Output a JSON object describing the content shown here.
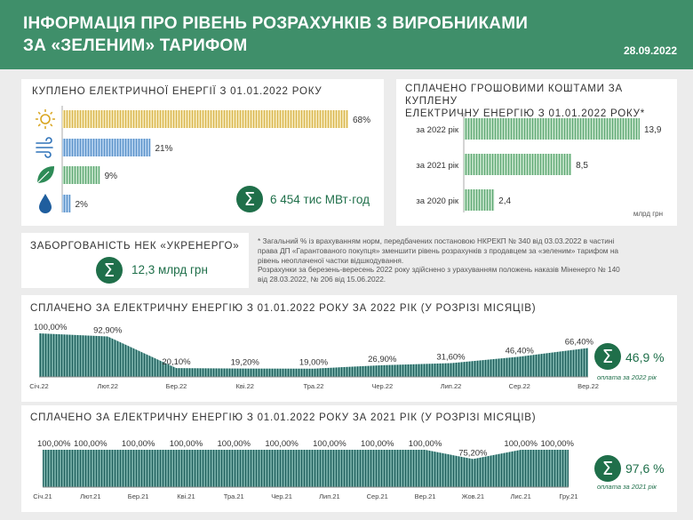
{
  "header": {
    "title_line1": "ІНФОРМАЦІЯ ПРО РІВЕНЬ РОЗРАХУНКІВ З ВИРОБНИКАМИ",
    "title_line2": "ЗА «ЗЕЛЕНИМ» ТАРИФОМ",
    "date": "28.09.2022"
  },
  "purchased": {
    "title": "КУПЛЕНО  ЕЛЕКТРИЧНОЇ  ЕНЕРГІЇ  З 01.01.2022 РОКУ",
    "total": "6 454 тис МВт·год"
  },
  "debt": {
    "title": "ЗАБОРГОВАНІСТЬ  НЕК  «УКРЕНЕРГО»",
    "value": "12,3 млрд грн"
  },
  "paid_money": {
    "title_line1": "СПЛАЧЕНО  ГРОШОВИМИ  КОШТАМИ  ЗА  КУПЛЕНУ",
    "title_line2": "ЕЛЕКТРИЧНУ  ЕНЕРГІЮ  З 01.01.2022 РОКУ*"
  },
  "note": {
    "line1": "* Загальний % із врахуванням норм, передбачених постановою НКРЕКП № 340 від 03.03.2022 в частині",
    "line2": "права ДП «Гарантованого покупця»  зменшити  рівень розрахунків з продавцем за «зеленим»  тарифом на",
    "line3": "рівень неоплаченої  частки відшкодування.",
    "line4": "Розрахунки  за березень-вересень 2022 року здійснено з урахуванням  положень наказів Міненерго № 140",
    "line5": "від 28.03.2022, № 206 від 15.06.2022."
  },
  "monthly2022": {
    "title": "СПЛАЧЕНО  ЗА  ЕЛЕКТРИЧНУ  ЕНЕРГІЮ  З 01.01.2022 РОКУ ЗА 2022 РІК (У РОЗРІЗІ МІСЯЦІВ)",
    "total": "46,9 %",
    "caption": "оплата за 2022 рік"
  },
  "monthly2021": {
    "title": "СПЛАЧЕНО  ЗА  ЕЛЕКТРИЧНУ  ЕНЕРГІЮ  З 01.01.2022 РОКУ ЗА 2021 РІК (У РОЗРІЗІ МІСЯЦІВ)",
    "total": "97,6 %",
    "caption": "оплата за 2021 рік"
  },
  "colors": {
    "header": "#3f8f6a",
    "green": "#9ed0aa",
    "dark_green": "#1f6f4a",
    "yellow": "#ecd58a",
    "blue": "#8db7df",
    "teal": "#1f6f73"
  },
  "chart_data": [
    {
      "type": "bar",
      "orientation": "horizontal",
      "title": "КУПЛЕНО  ЕЛЕКТРИЧНОЇ  ЕНЕРГІЇ  З 01.01.2022 РОКУ",
      "categories": [
        "sun-icon",
        "wind-icon",
        "leaf-icon",
        "water-drop-icon"
      ],
      "values": [
        68,
        21,
        9,
        2
      ],
      "labels": [
        "68%",
        "21%",
        "9%",
        "2%"
      ],
      "colors": [
        "#ecd58a",
        "#8db7df",
        "#9ed0aa",
        "#8db7df"
      ],
      "xlim": [
        0,
        68
      ]
    },
    {
      "type": "bar",
      "orientation": "horizontal",
      "title": "СПЛАЧЕНО  ГРОШОВИМИ  КОШТАМИ  ЗА  КУПЛЕНУ ЕЛЕКТРИЧНУ  ЕНЕРГІЮ  З 01.01.2022 РОКУ*",
      "categories": [
        "за 2022 рік",
        "за 2021 рік",
        "за 2020 рік"
      ],
      "values": [
        13.9,
        8.5,
        2.4
      ],
      "labels": [
        "13,9",
        "8,5",
        "2,4"
      ],
      "unit": "млрд грн",
      "xlim": [
        0,
        13.9
      ]
    },
    {
      "type": "area",
      "title": "СПЛАЧЕНО  ЗА  ЕЛЕКТРИЧНУ  ЕНЕРГІЮ  З 01.01.2022 РОКУ ЗА 2022 РІК (У РОЗРІЗІ МІСЯЦІВ)",
      "x": [
        "Січ.22",
        "Лют.22",
        "Бер.22",
        "Кві.22",
        "Тра.22",
        "Чер.22",
        "Лип.22",
        "Сер.22",
        "Вер.22"
      ],
      "values": [
        100.0,
        92.9,
        20.1,
        19.2,
        19.0,
        26.9,
        31.6,
        46.4,
        66.4
      ],
      "labels": [
        "100,00%",
        "92,90%",
        "20,10%",
        "19,20%",
        "19,00%",
        "26,90%",
        "31,60%",
        "46,40%",
        "66,40%"
      ],
      "ylim": [
        0,
        100
      ]
    },
    {
      "type": "area",
      "title": "СПЛАЧЕНО  ЗА  ЕЛЕКТРИЧНУ  ЕНЕРГІЮ  З 01.01.2022 РОКУ ЗА 2021 РІК (У РОЗРІЗІ МІСЯЦІВ)",
      "x": [
        "Січ.21",
        "Лют.21",
        "Бер.21",
        "Кві.21",
        "Тра.21",
        "Чер.21",
        "Лип.21",
        "Сер.21",
        "Вер.21",
        "Жов.21",
        "Лис.21",
        "Гру.21"
      ],
      "values": [
        100,
        100,
        100,
        100,
        100,
        100,
        100,
        100,
        100,
        75.2,
        100,
        100
      ],
      "labels": [
        "100,00%",
        "100,00%",
        "100,00%",
        "100,00%",
        "100,00%",
        "100,00%",
        "100,00%",
        "100,00%",
        "100,00%",
        "75,20%",
        "100,00%",
        "100,00%"
      ],
      "ylim": [
        0,
        100
      ]
    }
  ]
}
